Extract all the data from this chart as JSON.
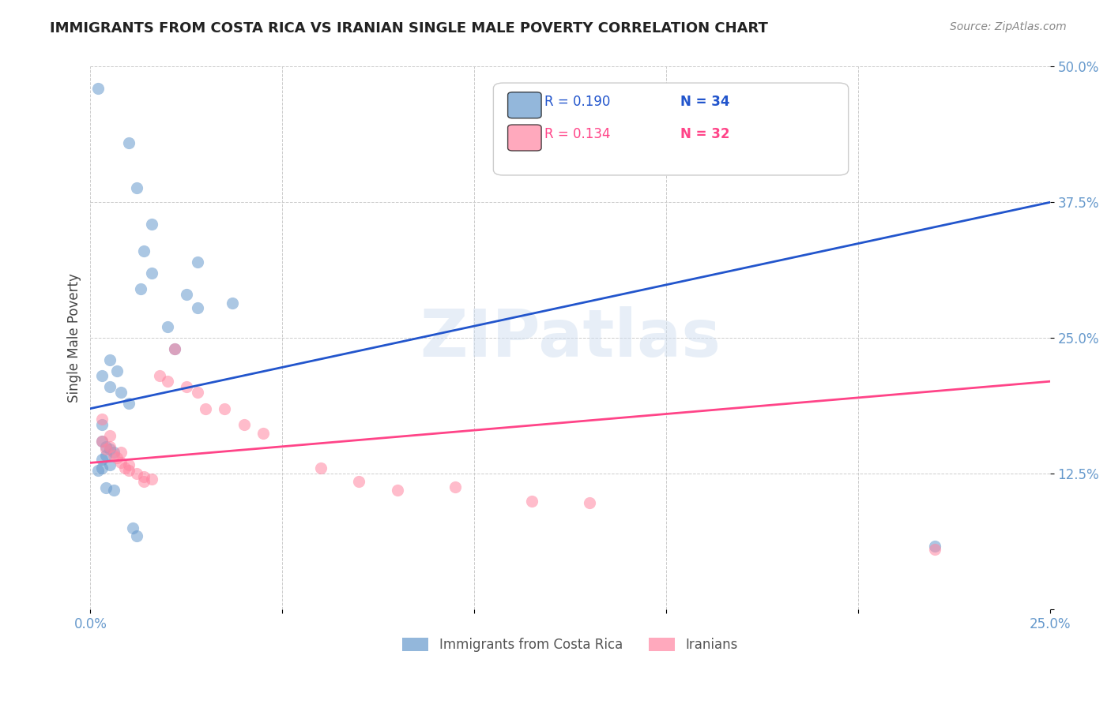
{
  "title": "IMMIGRANTS FROM COSTA RICA VS IRANIAN SINGLE MALE POVERTY CORRELATION CHART",
  "source": "Source: ZipAtlas.com",
  "ylabel": "Single Male Poverty",
  "xlabel": "",
  "xlim": [
    0.0,
    0.25
  ],
  "ylim": [
    0.0,
    0.5
  ],
  "xticks": [
    0.0,
    0.05,
    0.1,
    0.15,
    0.2,
    0.25
  ],
  "yticks": [
    0.0,
    0.125,
    0.25,
    0.375,
    0.5
  ],
  "xticklabels": [
    "0.0%",
    "",
    "",
    "",
    "",
    "25.0%"
  ],
  "yticklabels": [
    "",
    "12.5%",
    "25.0%",
    "37.5%",
    "50.0%"
  ],
  "legend1_label": "Immigrants from Costa Rica",
  "legend2_label": "Iranians",
  "r1": 0.19,
  "n1": 34,
  "r2": 0.134,
  "n2": 32,
  "color_blue": "#6699cc",
  "color_pink": "#ff85a1",
  "line_blue": "#2255cc",
  "line_pink": "#ff4488",
  "watermark": "ZIPatlas",
  "background_color": "#ffffff",
  "scatter_alpha": 0.55,
  "scatter_size": 120,
  "costa_rica_points": [
    [
      0.002,
      0.48
    ],
    [
      0.01,
      0.43
    ],
    [
      0.012,
      0.388
    ],
    [
      0.016,
      0.355
    ],
    [
      0.014,
      0.33
    ],
    [
      0.016,
      0.31
    ],
    [
      0.013,
      0.295
    ],
    [
      0.028,
      0.32
    ],
    [
      0.025,
      0.29
    ],
    [
      0.02,
      0.26
    ],
    [
      0.028,
      0.278
    ],
    [
      0.037,
      0.282
    ],
    [
      0.022,
      0.24
    ],
    [
      0.005,
      0.23
    ],
    [
      0.007,
      0.22
    ],
    [
      0.003,
      0.215
    ],
    [
      0.005,
      0.205
    ],
    [
      0.008,
      0.2
    ],
    [
      0.01,
      0.19
    ],
    [
      0.003,
      0.17
    ],
    [
      0.003,
      0.155
    ],
    [
      0.004,
      0.15
    ],
    [
      0.005,
      0.148
    ],
    [
      0.006,
      0.145
    ],
    [
      0.004,
      0.142
    ],
    [
      0.003,
      0.138
    ],
    [
      0.005,
      0.133
    ],
    [
      0.003,
      0.13
    ],
    [
      0.002,
      0.128
    ],
    [
      0.004,
      0.112
    ],
    [
      0.006,
      0.11
    ],
    [
      0.011,
      0.075
    ],
    [
      0.012,
      0.068
    ],
    [
      0.22,
      0.058
    ]
  ],
  "iranian_points": [
    [
      0.003,
      0.175
    ],
    [
      0.005,
      0.16
    ],
    [
      0.003,
      0.155
    ],
    [
      0.005,
      0.15
    ],
    [
      0.004,
      0.148
    ],
    [
      0.008,
      0.145
    ],
    [
      0.006,
      0.142
    ],
    [
      0.007,
      0.14
    ],
    [
      0.008,
      0.135
    ],
    [
      0.01,
      0.133
    ],
    [
      0.009,
      0.13
    ],
    [
      0.01,
      0.128
    ],
    [
      0.012,
      0.125
    ],
    [
      0.014,
      0.122
    ],
    [
      0.016,
      0.12
    ],
    [
      0.014,
      0.118
    ],
    [
      0.018,
      0.215
    ],
    [
      0.02,
      0.21
    ],
    [
      0.025,
      0.205
    ],
    [
      0.028,
      0.2
    ],
    [
      0.022,
      0.24
    ],
    [
      0.03,
      0.185
    ],
    [
      0.035,
      0.185
    ],
    [
      0.04,
      0.17
    ],
    [
      0.045,
      0.162
    ],
    [
      0.06,
      0.13
    ],
    [
      0.07,
      0.118
    ],
    [
      0.08,
      0.11
    ],
    [
      0.095,
      0.113
    ],
    [
      0.115,
      0.1
    ],
    [
      0.13,
      0.098
    ],
    [
      0.22,
      0.055
    ]
  ],
  "blue_line_x": [
    0.0,
    0.25
  ],
  "blue_line_y": [
    0.185,
    0.375
  ],
  "pink_line_x": [
    0.0,
    0.25
  ],
  "pink_line_y": [
    0.135,
    0.21
  ]
}
